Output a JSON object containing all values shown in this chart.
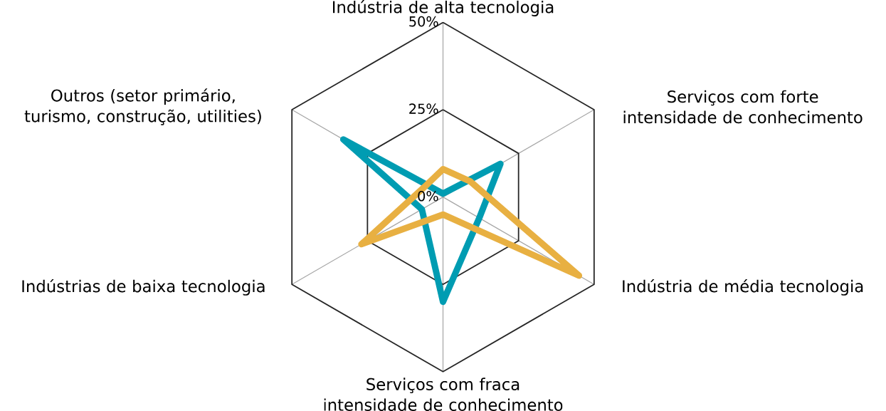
{
  "chart_data": {
    "type": "radar",
    "categories": [
      "Indústria de alta tecnologia",
      "Serviços com forte intensidade de conhecimento",
      "Indústria de média tecnologia",
      "Serviços com fraca intensidade de conhecimento",
      "Indústrias de baixa  tecnologia",
      "Outros (setor primário, turismo, construção, utilities)"
    ],
    "series": [
      {
        "color": "#009cb2",
        "values": [
          1,
          19,
          12,
          30,
          7,
          33
        ]
      },
      {
        "color": "#e8b042",
        "values": [
          8,
          9,
          45,
          5,
          27,
          6
        ]
      }
    ],
    "ylim": [
      0,
      50
    ],
    "yticks": [
      {
        "value": 0,
        "label": "0%"
      },
      {
        "value": 25,
        "label": "25%"
      },
      {
        "value": 50,
        "label": "50%"
      }
    ],
    "grid": true
  }
}
